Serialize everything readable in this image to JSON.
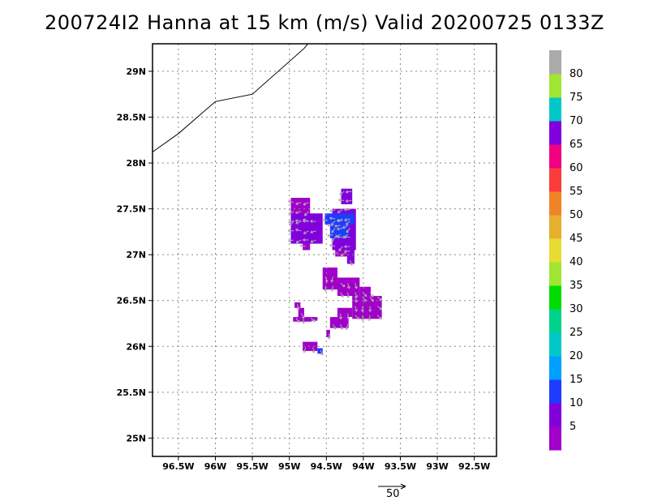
{
  "title": "200724I2 Hanna at 15 km (m/s) Valid 20200725 0133Z",
  "map": {
    "lon_min": -96.85,
    "lon_max": -92.2,
    "lat_min": 24.8,
    "lat_max": 29.3,
    "lat_ticks": [
      {
        "value": 29.0,
        "label": "29N"
      },
      {
        "value": 28.5,
        "label": "28.5N"
      },
      {
        "value": 28.0,
        "label": "28N"
      },
      {
        "value": 27.5,
        "label": "27.5N"
      },
      {
        "value": 27.0,
        "label": "27N"
      },
      {
        "value": 26.5,
        "label": "26.5N"
      },
      {
        "value": 26.0,
        "label": "26N"
      },
      {
        "value": 25.5,
        "label": "25.5N"
      },
      {
        "value": 25.0,
        "label": "25N"
      }
    ],
    "lon_ticks": [
      {
        "value": -96.5,
        "label": "96.5W"
      },
      {
        "value": -96.0,
        "label": "96W"
      },
      {
        "value": -95.5,
        "label": "95.5W"
      },
      {
        "value": -95.0,
        "label": "95W"
      },
      {
        "value": -94.5,
        "label": "94.5W"
      },
      {
        "value": -94.0,
        "label": "94W"
      },
      {
        "value": -93.5,
        "label": "93.5W"
      },
      {
        "value": -93.0,
        "label": "93W"
      },
      {
        "value": -92.5,
        "label": "92.5W"
      }
    ],
    "coastline": [
      [
        -96.85,
        28.12
      ],
      [
        -96.5,
        28.32
      ],
      [
        -96.0,
        28.67
      ],
      [
        -95.5,
        28.75
      ],
      [
        -94.8,
        29.25
      ],
      [
        -94.75,
        29.3
      ]
    ],
    "wind_regions": [
      {
        "lon": [
          -94.98,
          -94.72
        ],
        "lat": [
          27.33,
          27.62
        ],
        "speed": 4
      },
      {
        "lon": [
          -94.98,
          -94.55
        ],
        "lat": [
          27.12,
          27.45
        ],
        "speed": 9
      },
      {
        "lon": [
          -94.42,
          -94.1
        ],
        "lat": [
          27.05,
          27.5
        ],
        "speed": 9
      },
      {
        "lon": [
          -94.22,
          -94.12
        ],
        "lat": [
          26.9,
          27.1
        ],
        "speed": 9
      },
      {
        "lon": [
          -94.3,
          -94.15
        ],
        "lat": [
          27.55,
          27.72
        ],
        "speed": 9
      },
      {
        "lon": [
          -94.52,
          -94.12
        ],
        "lat": [
          27.33,
          27.45
        ],
        "speed": 12
      },
      {
        "lon": [
          -94.45,
          -94.2
        ],
        "lat": [
          27.18,
          27.33
        ],
        "speed": 14
      },
      {
        "lon": [
          -94.82,
          -94.72
        ],
        "lat": [
          27.05,
          27.12
        ],
        "speed": 4
      },
      {
        "lon": [
          -94.55,
          -94.35
        ],
        "lat": [
          26.62,
          26.86
        ],
        "speed": 4
      },
      {
        "lon": [
          -94.38,
          -94.2
        ],
        "lat": [
          26.98,
          27.05
        ],
        "speed": 4
      },
      {
        "lon": [
          -94.35,
          -94.05
        ],
        "lat": [
          26.55,
          26.75
        ],
        "speed": 4
      },
      {
        "lon": [
          -94.15,
          -93.75
        ],
        "lat": [
          26.3,
          26.55
        ],
        "speed": 4
      },
      {
        "lon": [
          -94.05,
          -93.9
        ],
        "lat": [
          26.55,
          26.65
        ],
        "speed": 4
      },
      {
        "lon": [
          -94.45,
          -94.2
        ],
        "lat": [
          26.2,
          26.32
        ],
        "speed": 4
      },
      {
        "lon": [
          -94.35,
          -94.15
        ],
        "lat": [
          26.32,
          26.42
        ],
        "speed": 4
      },
      {
        "lon": [
          -94.5,
          -94.45
        ],
        "lat": [
          26.1,
          26.18
        ],
        "speed": 4
      },
      {
        "lon": [
          -94.93,
          -94.85
        ],
        "lat": [
          26.42,
          26.48
        ],
        "speed": 4
      },
      {
        "lon": [
          -94.88,
          -94.8
        ],
        "lat": [
          26.32,
          26.42
        ],
        "speed": 4
      },
      {
        "lon": [
          -94.95,
          -94.7
        ],
        "lat": [
          26.27,
          26.32
        ],
        "speed": 4
      },
      {
        "lon": [
          -94.72,
          -94.62
        ],
        "lat": [
          26.28,
          26.32
        ],
        "speed": 4
      },
      {
        "lon": [
          -94.82,
          -94.62
        ],
        "lat": [
          25.95,
          26.05
        ],
        "speed": 4
      },
      {
        "lon": [
          -94.62,
          -94.55
        ],
        "lat": [
          25.92,
          25.98
        ],
        "speed": 14
      }
    ]
  },
  "colorbar": {
    "colors": [
      "#a000c8",
      "#8200dc",
      "#1e3cff",
      "#00a0ff",
      "#00c8c8",
      "#00d28c",
      "#00dc00",
      "#a0e632",
      "#e6dc32",
      "#e6af2d",
      "#f08228",
      "#fa3c3c",
      "#f00082",
      "#8200dc",
      "#00c8c8",
      "#a0e632",
      "#aaaaaa"
    ],
    "labels": [
      "5",
      "10",
      "15",
      "20",
      "25",
      "30",
      "35",
      "40",
      "45",
      "50",
      "55",
      "60",
      "65",
      "70",
      "75",
      "80"
    ]
  },
  "reference_vector": {
    "label": "50"
  }
}
